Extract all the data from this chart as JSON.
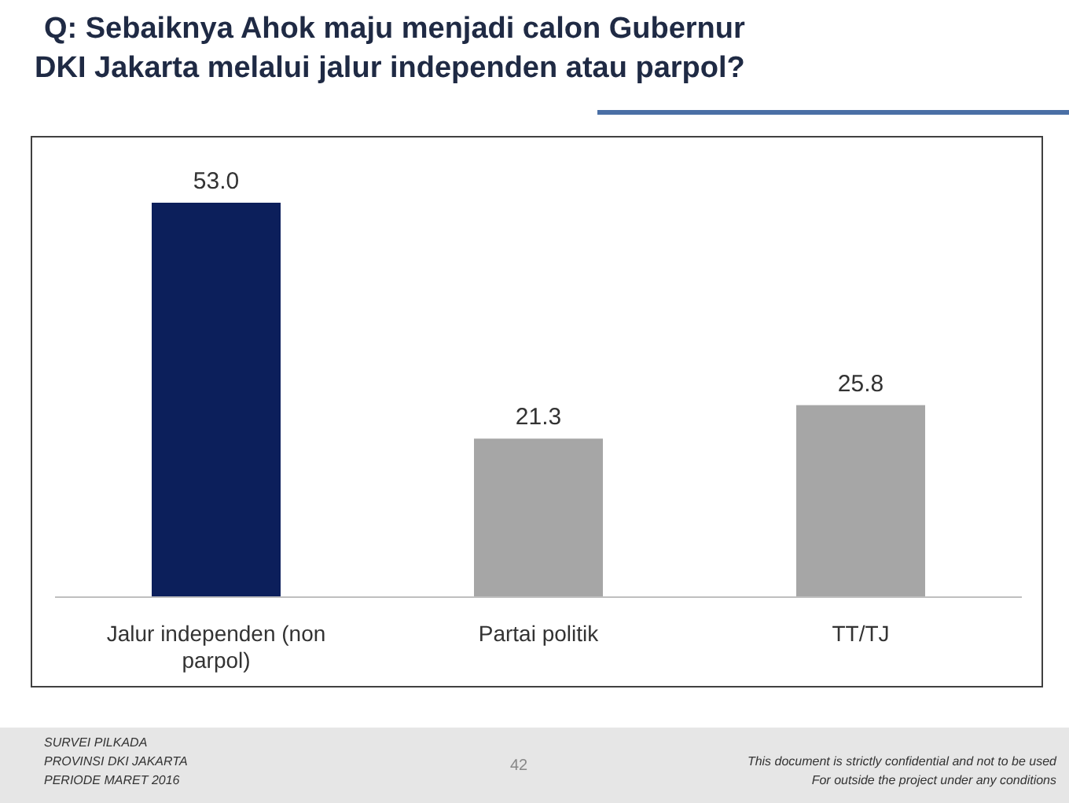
{
  "chart_data": {
    "type": "bar",
    "title": "Q: Sebaiknya Ahok maju menjadi calon Gubernur DKI Jakarta melalui jalur independen atau parpol?",
    "categories": [
      "Jalur independen (non parpol)",
      "Partai politik",
      "TT/TJ"
    ],
    "values": [
      53.0,
      21.3,
      25.8
    ],
    "colors": [
      "#0c1f5b",
      "#a6a6a6",
      "#a6a6a6"
    ],
    "value_labels": [
      "53.0",
      "21.3",
      "25.8"
    ],
    "annotations": [
      "SURVEI PILKADA",
      "PROVINSI DKI JAKARTA",
      "PERIODE  MARET 2016",
      "42",
      "This document is strictly confidential and not to be used",
      "For  outside the project under any conditions"
    ]
  }
}
